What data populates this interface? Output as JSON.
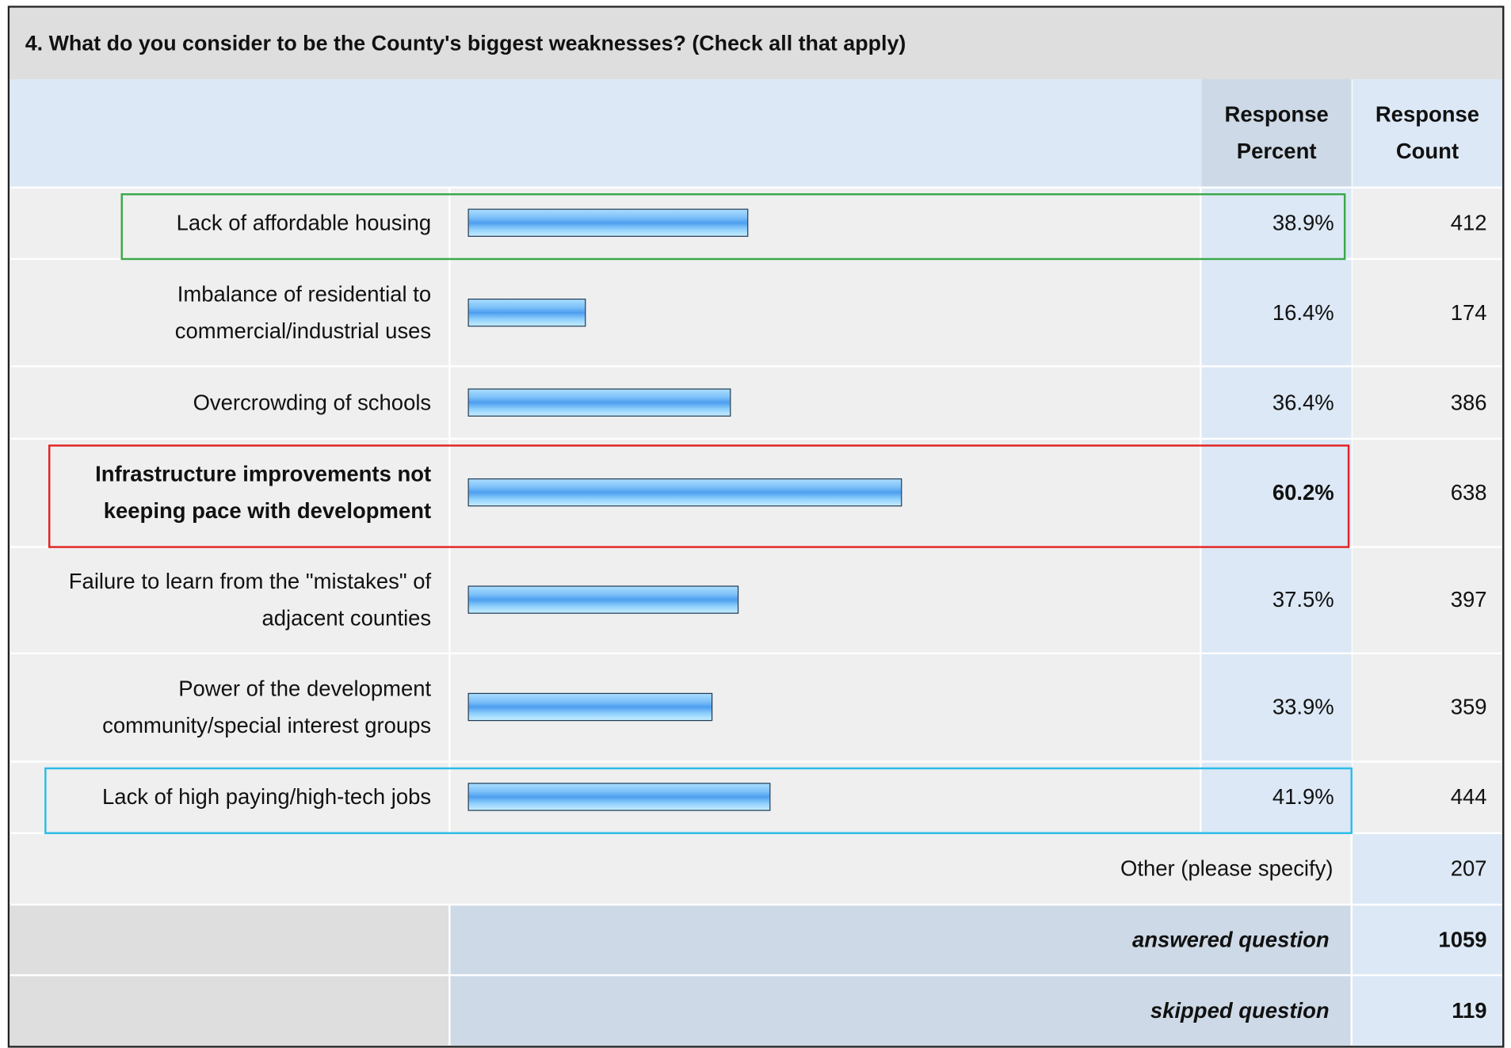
{
  "chart_data": {
    "type": "bar",
    "title": "4. What do you consider to be the County's biggest weaknesses? (Check all that apply)",
    "column_headers": [
      "Response Percent",
      "Response Count"
    ],
    "categories": [
      "Lack of affordable housing",
      "Imbalance of residential to commercial/industrial uses",
      "Overcrowding of schools",
      "Infrastructure improvements not keeping pace with development",
      "Failure to learn from the \"mistakes\" of adjacent counties",
      "Power of the development community/special interest groups",
      "Lack of high paying/high-tech jobs"
    ],
    "values": [
      38.9,
      16.4,
      36.4,
      60.2,
      37.5,
      33.9,
      41.9
    ],
    "value_labels": [
      "38.9%",
      "16.4%",
      "36.4%",
      "60.2%",
      "37.5%",
      "33.9%",
      "41.9%"
    ],
    "counts": [
      412,
      174,
      386,
      638,
      397,
      359,
      444
    ],
    "xlim": [
      0,
      100
    ],
    "other": {
      "label": "Other (please specify)",
      "count": 207
    },
    "answered": {
      "label": "answered question",
      "count": 1059
    },
    "skipped": {
      "label": "skipped question",
      "count": 119
    },
    "highlights": [
      {
        "row": 0,
        "color": "#3aa84a"
      },
      {
        "row": 3,
        "color": "#e32222",
        "bold": true
      },
      {
        "row": 6,
        "color": "#2bbbe8"
      }
    ]
  }
}
